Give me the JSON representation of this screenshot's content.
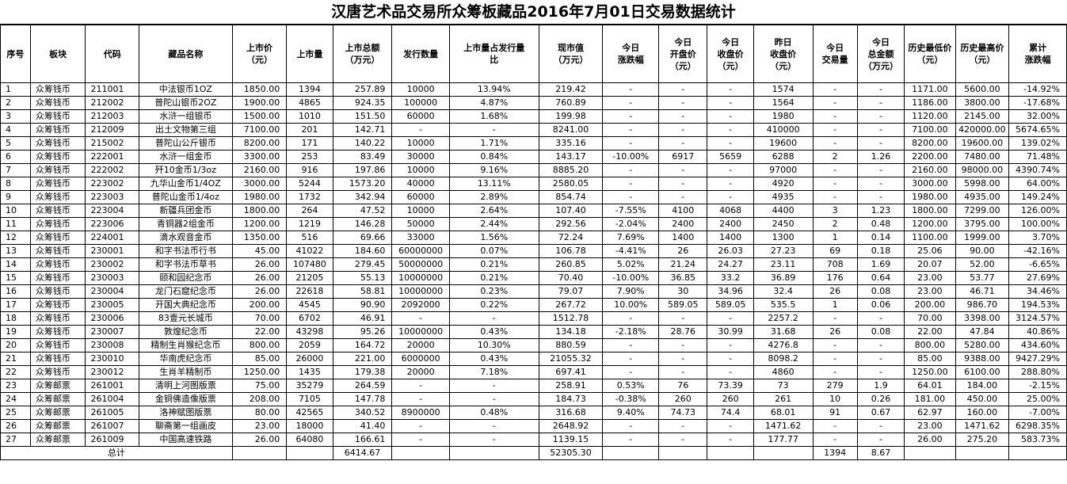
{
  "title": "汉唐艺术品交易所众筹板藏品2016年7月01日交易数据统计",
  "headers": [
    [
      "序号"
    ],
    [
      "板块"
    ],
    [
      "代码"
    ],
    [
      "藏品名称"
    ],
    [
      "上市价",
      "（元）"
    ],
    [
      "上市量"
    ],
    [
      "上市总额",
      "（万元）"
    ],
    [
      "发行数量"
    ],
    [
      "上市量占发行量",
      "比"
    ],
    [
      "现市值",
      "（万元）"
    ],
    [
      "今日",
      "涨跌幅"
    ],
    [
      "今日",
      "开盘价",
      "（元）"
    ],
    [
      "今日",
      "收盘价",
      "（元）"
    ],
    [
      "昨日",
      "收盘价",
      "（元）"
    ],
    [
      "今日",
      "交易量"
    ],
    [
      "今日",
      "总金额",
      "（万元）"
    ],
    [
      "历史最低价",
      "（元）"
    ],
    [
      "历史最高价",
      "（元）"
    ],
    [
      "累计",
      "涨跌幅"
    ]
  ],
  "rows": [
    [
      "1",
      "众筹钱币",
      "211001",
      "中法银币1OZ",
      "1850.00",
      "1394",
      "257.89",
      "10000",
      "13.94%",
      "219.42",
      "-",
      "-",
      "-",
      "1574",
      "-",
      "-",
      "1171.00",
      "5600.00",
      "-14.92%"
    ],
    [
      "2",
      "众筹钱币",
      "212002",
      "普陀山银币2OZ",
      "1900.00",
      "4865",
      "924.35",
      "100000",
      "4.87%",
      "760.89",
      "-",
      "-",
      "-",
      "1564",
      "-",
      "-",
      "1186.00",
      "3800.00",
      "-17.68%"
    ],
    [
      "3",
      "众筹钱币",
      "212003",
      "水浒一组银币",
      "1500.00",
      "1010",
      "151.50",
      "60000",
      "1.68%",
      "199.98",
      "-",
      "-",
      "-",
      "1980",
      "-",
      "-",
      "1120.00",
      "2145.00",
      "32.00%"
    ],
    [
      "4",
      "众筹钱币",
      "212009",
      "出土文物第三组",
      "7100.00",
      "201",
      "142.71",
      "-",
      "-",
      "8241.00",
      "-",
      "-",
      "-",
      "410000",
      "-",
      "-",
      "7100.00",
      "420000.00",
      "5674.65%"
    ],
    [
      "5",
      "众筹钱币",
      "215002",
      "普陀山公斤银币",
      "8200.00",
      "171",
      "140.22",
      "10000",
      "1.71%",
      "335.16",
      "-",
      "-",
      "-",
      "19600",
      "-",
      "-",
      "8200.00",
      "19600.00",
      "139.02%"
    ],
    [
      "6",
      "众筹钱币",
      "222001",
      "水浒一组金币",
      "3300.00",
      "253",
      "83.49",
      "30000",
      "0.84%",
      "143.17",
      "-10.00%",
      "6917",
      "5659",
      "6288",
      "2",
      "1.26",
      "2200.00",
      "7480.00",
      "71.48%"
    ],
    [
      "7",
      "众筹钱币",
      "222002",
      "歼10金币1/3oz",
      "2160.00",
      "916",
      "197.86",
      "10000",
      "9.16%",
      "8885.20",
      "-",
      "-",
      "-",
      "97000",
      "-",
      "-",
      "2160.00",
      "98000.00",
      "4390.74%"
    ],
    [
      "8",
      "众筹钱币",
      "223002",
      "九华山金币1/4OZ",
      "3000.00",
      "5244",
      "1573.20",
      "40000",
      "13.11%",
      "2580.05",
      "-",
      "-",
      "-",
      "4920",
      "-",
      "-",
      "3000.00",
      "5998.00",
      "64.00%"
    ],
    [
      "9",
      "众筹钱币",
      "223003",
      "普陀山金币1/4oz",
      "1980.00",
      "1732",
      "342.94",
      "60000",
      "2.89%",
      "854.74",
      "-",
      "-",
      "-",
      "4935",
      "-",
      "-",
      "1980.00",
      "4935.00",
      "149.24%"
    ],
    [
      "10",
      "众筹钱币",
      "223004",
      "新疆兵团金币",
      "1800.00",
      "264",
      "47.52",
      "10000",
      "2.64%",
      "107.40",
      "-7.55%",
      "4100",
      "4068",
      "4400",
      "3",
      "1.23",
      "1800.00",
      "7299.00",
      "126.00%"
    ],
    [
      "11",
      "众筹钱币",
      "223006",
      "青铜器2组金币",
      "1200.00",
      "1219",
      "146.28",
      "50000",
      "2.44%",
      "292.56",
      "-2.04%",
      "2400",
      "2400",
      "2450",
      "2",
      "0.48",
      "1200.00",
      "3795.00",
      "100.00%"
    ],
    [
      "12",
      "众筹钱币",
      "224001",
      "滴水观音金币",
      "1350.00",
      "516",
      "69.66",
      "33000",
      "1.56%",
      "72.24",
      "7.69%",
      "1400",
      "1400",
      "1300",
      "1",
      "0.14",
      "1100.00",
      "1999.00",
      "3.70%"
    ],
    [
      "13",
      "众筹钱币",
      "230001",
      "和字书法币行书",
      "45.00",
      "41022",
      "184.60",
      "60000000",
      "0.07%",
      "106.78",
      "-4.41%",
      "26",
      "26.03",
      "27.23",
      "69",
      "0.18",
      "25.06",
      "90.00",
      "-42.16%"
    ],
    [
      "14",
      "众筹钱币",
      "230002",
      "和字书法币草书",
      "26.00",
      "107480",
      "279.45",
      "50000000",
      "0.21%",
      "260.85",
      "5.02%",
      "21.24",
      "24.27",
      "23.11",
      "708",
      "1.69",
      "20.07",
      "52.00",
      "-6.65%"
    ],
    [
      "15",
      "众筹钱币",
      "230003",
      "颐和园纪念币",
      "26.00",
      "21205",
      "55.13",
      "10000000",
      "0.21%",
      "70.40",
      "-10.00%",
      "36.85",
      "33.2",
      "36.89",
      "176",
      "0.64",
      "23.00",
      "53.77",
      "27.69%"
    ],
    [
      "16",
      "众筹钱币",
      "230004",
      "龙门石窟纪念币",
      "26.00",
      "22618",
      "58.81",
      "10000000",
      "0.23%",
      "79.07",
      "7.90%",
      "30",
      "34.96",
      "32.4",
      "26",
      "0.08",
      "23.00",
      "46.71",
      "34.46%"
    ],
    [
      "17",
      "众筹钱币",
      "230005",
      "开国大典纪念币",
      "200.00",
      "4545",
      "90.90",
      "2092000",
      "0.22%",
      "267.72",
      "10.00%",
      "589.05",
      "589.05",
      "535.5",
      "1",
      "0.06",
      "200.00",
      "986.70",
      "194.53%"
    ],
    [
      "18",
      "众筹钱币",
      "230006",
      "83壹元长城币",
      "70.00",
      "6702",
      "46.91",
      "-",
      "-",
      "1512.78",
      "-",
      "-",
      "-",
      "2257.2",
      "-",
      "-",
      "70.00",
      "3398.00",
      "3124.57%"
    ],
    [
      "19",
      "众筹钱币",
      "230007",
      "敦煌纪念币",
      "22.00",
      "43298",
      "95.26",
      "10000000",
      "0.43%",
      "134.18",
      "-2.18%",
      "28.76",
      "30.99",
      "31.68",
      "26",
      "0.08",
      "22.00",
      "47.84",
      "40.86%"
    ],
    [
      "20",
      "众筹钱币",
      "230008",
      "精制生肖猴纪念币",
      "800.00",
      "2059",
      "164.72",
      "20000",
      "10.30%",
      "880.59",
      "-",
      "-",
      "-",
      "4276.8",
      "-",
      "-",
      "800.00",
      "5280.00",
      "434.60%"
    ],
    [
      "21",
      "众筹钱币",
      "230010",
      "华南虎纪念币",
      "85.00",
      "26000",
      "221.00",
      "6000000",
      "0.43%",
      "21055.32",
      "-",
      "-",
      "-",
      "8098.2",
      "-",
      "-",
      "85.00",
      "9388.00",
      "9427.29%"
    ],
    [
      "22",
      "众筹钱币",
      "230012",
      "生肖羊精制币",
      "1250.00",
      "1435",
      "179.38",
      "20000",
      "7.18%",
      "697.41",
      "-",
      "-",
      "-",
      "4860",
      "-",
      "-",
      "1250.00",
      "6100.00",
      "288.80%"
    ],
    [
      "23",
      "众筹邮票",
      "261001",
      "清明上河图版票",
      "75.00",
      "35279",
      "264.59",
      "-",
      "-",
      "258.91",
      "0.53%",
      "76",
      "73.39",
      "73",
      "279",
      "1.9",
      "64.01",
      "184.00",
      "-2.15%"
    ],
    [
      "24",
      "众筹邮票",
      "261004",
      "金铜佛造像版票",
      "208.00",
      "7105",
      "147.78",
      "-",
      "-",
      "184.73",
      "-0.38%",
      "260",
      "260",
      "261",
      "10",
      "0.26",
      "181.00",
      "450.00",
      "25.00%"
    ],
    [
      "25",
      "众筹邮票",
      "261005",
      "洛神赋图版票",
      "80.00",
      "42565",
      "340.52",
      "8900000",
      "0.48%",
      "316.68",
      "9.40%",
      "74.73",
      "74.4",
      "68.01",
      "91",
      "0.67",
      "62.97",
      "160.00",
      "-7.00%"
    ],
    [
      "26",
      "众筹邮票",
      "261007",
      "聊斋第一组画皮",
      "23.00",
      "18000",
      "41.40",
      "-",
      "-",
      "2648.92",
      "-",
      "-",
      "-",
      "1471.62",
      "-",
      "-",
      "23.00",
      "1471.62",
      "6298.35%"
    ],
    [
      "27",
      "众筹邮票",
      "261009",
      "中国高速铁路",
      "26.00",
      "64080",
      "166.61",
      "-",
      "-",
      "1139.15",
      "-",
      "-",
      "-",
      "177.77",
      "-",
      "-",
      "26.00",
      "275.20",
      "583.73%"
    ]
  ],
  "total": {
    "label": "总计",
    "total_amount": "6414.67",
    "market_value": "52305.30",
    "volume": "1394",
    "amount": "8.67"
  }
}
